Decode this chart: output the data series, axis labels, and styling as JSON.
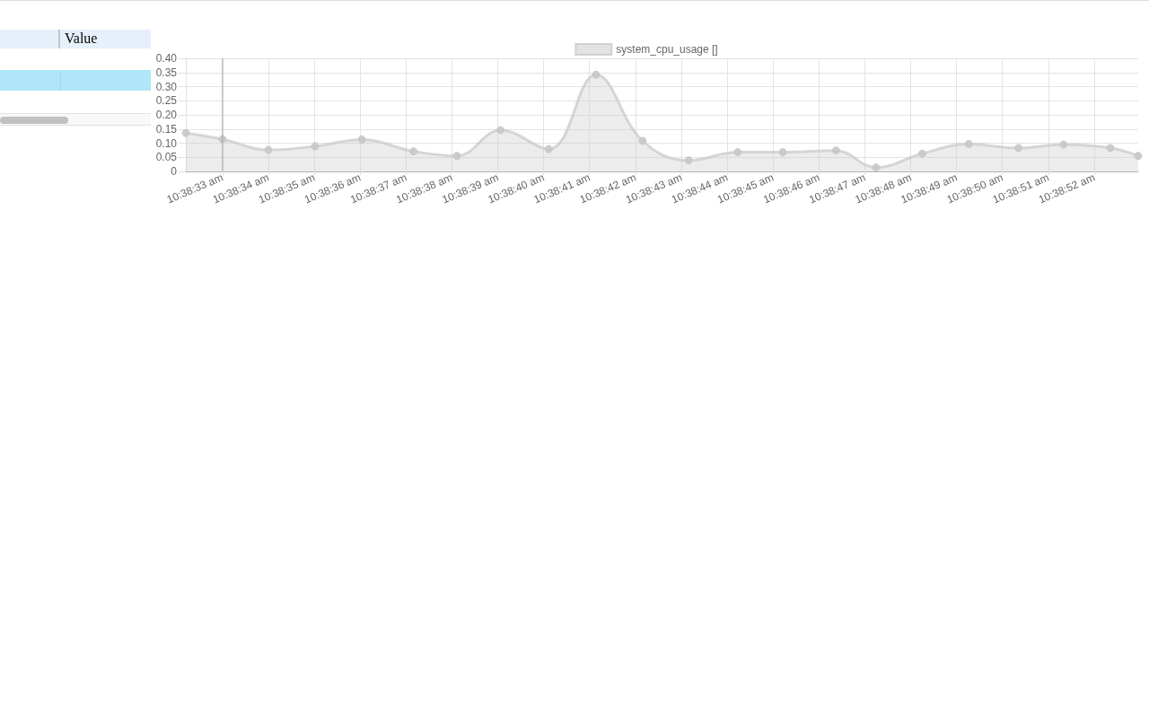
{
  "chart_data": {
    "type": "area",
    "annotations": [
      "Value"
    ],
    "x": [
      10.642278,
      10.6425,
      10.642778,
      10.643061,
      10.643344,
      10.643656,
      10.643919,
      10.644183,
      10.644475,
      10.644761,
      10.645044,
      10.645322,
      10.645619,
      10.645892,
      10.646214,
      10.646456,
      10.646736,
      10.647019,
      10.647319,
      10.647592,
      10.647875,
      10.648044
    ],
    "series": [
      {
        "name": "system_cpu_usage []",
        "color": "#c8c8c8",
        "values": [
          0.136,
          0.114,
          0.076,
          0.089,
          0.113,
          0.071,
          0.055,
          0.146,
          0.079,
          0.342,
          0.108,
          0.039,
          0.068,
          0.068,
          0.074,
          0.014,
          0.063,
          0.097,
          0.083,
          0.095,
          0.083,
          0.055
        ]
      }
    ],
    "xlim": [
      10.642278,
      10.648044
    ],
    "xticks": [
      {
        "value": 10.6425,
        "label": "10:38:33 am"
      },
      {
        "value": 10.642778,
        "label": "10:38:34 am"
      },
      {
        "value": 10.643056,
        "label": "10:38:35 am"
      },
      {
        "value": 10.643333,
        "label": "10:38:36 am"
      },
      {
        "value": 10.643611,
        "label": "10:38:37 am"
      },
      {
        "value": 10.643889,
        "label": "10:38:38 am"
      },
      {
        "value": 10.644167,
        "label": "10:38:39 am"
      },
      {
        "value": 10.644444,
        "label": "10:38:40 am"
      },
      {
        "value": 10.644722,
        "label": "10:38:41 am"
      },
      {
        "value": 10.645,
        "label": "10:38:42 am"
      },
      {
        "value": 10.645278,
        "label": "10:38:43 am"
      },
      {
        "value": 10.645556,
        "label": "10:38:44 am"
      },
      {
        "value": 10.645833,
        "label": "10:38:45 am"
      },
      {
        "value": 10.646111,
        "label": "10:38:46 am"
      },
      {
        "value": 10.646389,
        "label": "10:38:47 am"
      },
      {
        "value": 10.646667,
        "label": "10:38:48 am"
      },
      {
        "value": 10.646944,
        "label": "10:38:49 am"
      },
      {
        "value": 10.647222,
        "label": "10:38:50 am"
      },
      {
        "value": 10.6475,
        "label": "10:38:51 am"
      },
      {
        "value": 10.647778,
        "label": "10:38:52 am"
      }
    ],
    "ylim": [
      0,
      0.4
    ],
    "yticks": [
      0,
      0.05,
      {
        "value": 0.1,
        "label": "0.10"
      },
      0.15,
      {
        "value": 0.2,
        "label": "0.20"
      },
      0.25,
      {
        "value": 0.3,
        "label": "0.30"
      },
      0.35,
      {
        "value": 0.4,
        "label": "0.40"
      }
    ],
    "grid": true,
    "legend": "top",
    "marker": "circle",
    "line_style": "solid",
    "ref_lines": [
      {
        "axis": "x",
        "value": 10.6425,
        "color": "#a6a6a6"
      }
    ]
  }
}
